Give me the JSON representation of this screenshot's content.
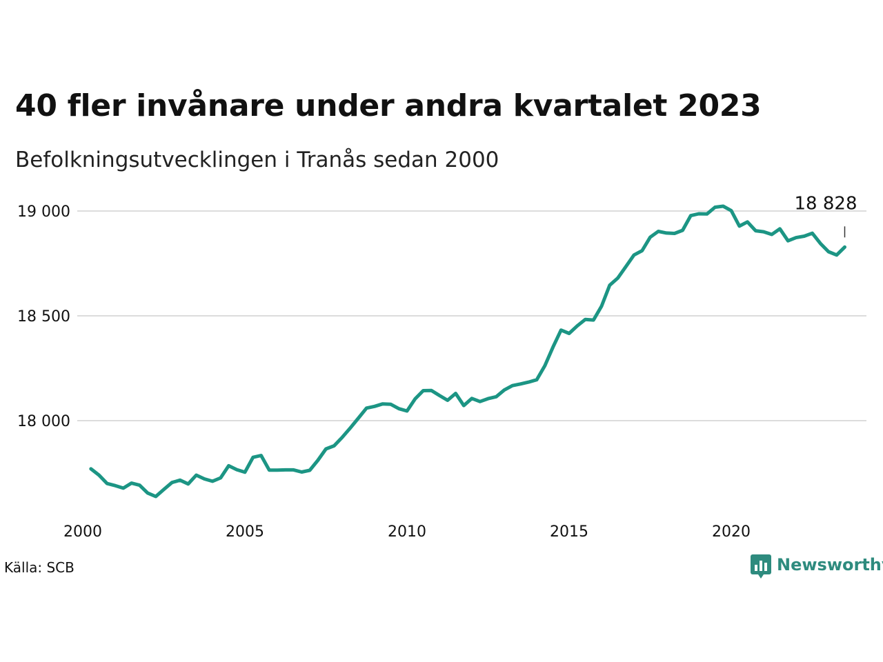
{
  "chart_data": {
    "type": "line",
    "title": "40 fler invånare under andra kvartalet 2023",
    "subtitle": "Befolkningsutvecklingen i Tranås sedan 2000",
    "xlabel": "",
    "ylabel": "",
    "x_ticks": [
      "2000",
      "2005",
      "2010",
      "2015",
      "2020"
    ],
    "y_ticks": [
      "18 000",
      "18 500",
      "19 000"
    ],
    "y_tick_values": [
      18000,
      18500,
      19000
    ],
    "ylim": [
      17600,
      19150
    ],
    "xlim": [
      2000,
      2024.5
    ],
    "grid": "horizontal",
    "line_color": "#1c9584",
    "end_label": "18 828",
    "x": [
      2000.25,
      2000.5,
      2000.75,
      2001.0,
      2001.25,
      2001.5,
      2001.75,
      2002.0,
      2002.25,
      2002.5,
      2002.75,
      2003.0,
      2003.25,
      2003.5,
      2003.75,
      2004.0,
      2004.25,
      2004.5,
      2004.75,
      2005.0,
      2005.25,
      2005.5,
      2005.75,
      2006.0,
      2006.25,
      2006.5,
      2006.75,
      2007.0,
      2007.25,
      2007.5,
      2007.75,
      2008.0,
      2008.25,
      2008.5,
      2008.75,
      2009.0,
      2009.25,
      2009.5,
      2009.75,
      2010.0,
      2010.25,
      2010.5,
      2010.75,
      2011.0,
      2011.25,
      2011.5,
      2011.75,
      2012.0,
      2012.25,
      2012.5,
      2012.75,
      2013.0,
      2013.25,
      2013.5,
      2013.75,
      2014.0,
      2014.25,
      2014.5,
      2014.75,
      2015.0,
      2015.25,
      2015.5,
      2015.75,
      2016.0,
      2016.25,
      2016.5,
      2016.75,
      2017.0,
      2017.25,
      2017.5,
      2017.75,
      2018.0,
      2018.25,
      2018.5,
      2018.75,
      2019.0,
      2019.25,
      2019.5,
      2019.75,
      2020.0,
      2020.25,
      2020.5,
      2020.75,
      2021.0,
      2021.25,
      2021.5,
      2021.75,
      2022.0,
      2022.25,
      2022.5,
      2022.75,
      2023.0,
      2023.25,
      2023.5
    ],
    "values": [
      17770,
      17740,
      17700,
      17690,
      17678,
      17702,
      17692,
      17655,
      17638,
      17672,
      17705,
      17716,
      17698,
      17740,
      17722,
      17711,
      17727,
      17785,
      17766,
      17754,
      17825,
      17834,
      17764,
      17764,
      17765,
      17765,
      17755,
      17763,
      17811,
      17865,
      17880,
      17920,
      17965,
      18012,
      18060,
      18068,
      18080,
      18078,
      18057,
      18046,
      18104,
      18143,
      18144,
      18120,
      18097,
      18130,
      18072,
      18106,
      18091,
      18105,
      18114,
      18146,
      18167,
      18175,
      18184,
      18195,
      18262,
      18350,
      18432,
      18416,
      18452,
      18483,
      18480,
      18546,
      18646,
      18680,
      18735,
      18790,
      18811,
      18875,
      18903,
      18895,
      18893,
      18908,
      18978,
      18987,
      18986,
      19018,
      19023,
      19002,
      18928,
      18948,
      18906,
      18901,
      18888,
      18915,
      18858,
      18873,
      18880,
      18894,
      18845,
      18806,
      18790,
      18828
    ]
  },
  "footer": {
    "source": "Källa: SCB",
    "brand": "Newsworthy"
  },
  "colors": {
    "line": "#1c9584",
    "grid": "#dcdcdc",
    "brand": "#2e8b7e"
  }
}
